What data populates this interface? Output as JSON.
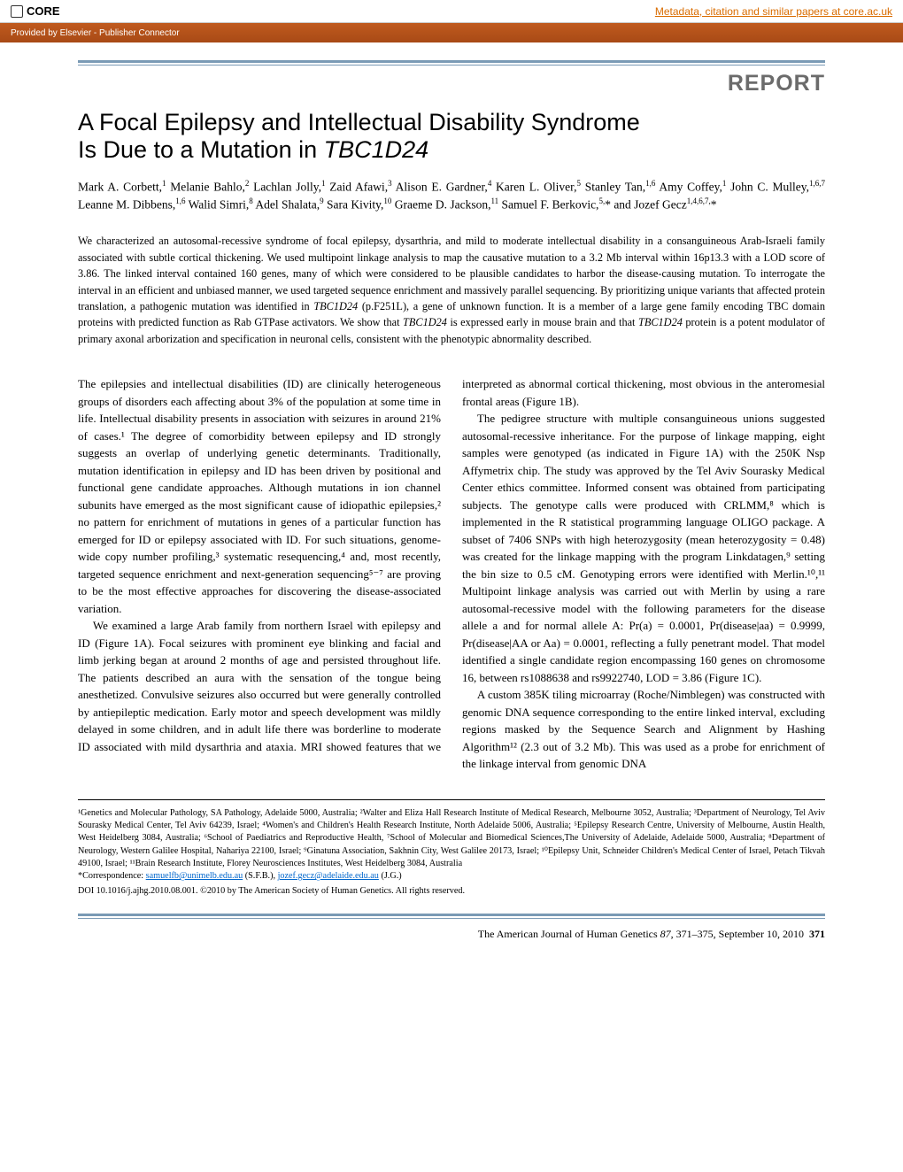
{
  "banner": {
    "core_label": "CORE",
    "core_link": "Metadata, citation and similar papers at core.ac.uk",
    "provider": "Provided by Elsevier - Publisher Connector"
  },
  "report_label": "REPORT",
  "title_line1": "A Focal Epilepsy and Intellectual Disability Syndrome",
  "title_line2_prefix": "Is Due to a Mutation in ",
  "title_gene": "TBC1D24",
  "authors_html": "Mark A. Corbett,<sup>1</sup> Melanie Bahlo,<sup>2</sup> Lachlan Jolly,<sup>1</sup> Zaid Afawi,<sup>3</sup> Alison E. Gardner,<sup>4</sup> Karen L. Oliver,<sup>5</sup> Stanley Tan,<sup>1,6</sup> Amy Coffey,<sup>1</sup> John C. Mulley,<sup>1,6,7</sup> Leanne M. Dibbens,<sup>1,6</sup> Walid Simri,<sup>8</sup> Adel Shalata,<sup>9</sup> Sara Kivity,<sup>10</sup> Graeme D. Jackson,<sup>11</sup> Samuel F. Berkovic,<sup>5,</sup>* and Jozef Gecz<sup>1,4,6,7,</sup>*",
  "abstract": "We characterized an autosomal-recessive syndrome of focal epilepsy, dysarthria, and mild to moderate intellectual disability in a consanguineous Arab-Israeli family associated with subtle cortical thickening. We used multipoint linkage analysis to map the causative mutation to a 3.2 Mb interval within 16p13.3 with a LOD score of 3.86. The linked interval contained 160 genes, many of which were considered to be plausible candidates to harbor the disease-causing mutation. To interrogate the interval in an efficient and unbiased manner, we used targeted sequence enrichment and massively parallel sequencing. By prioritizing unique variants that affected protein translation, a pathogenic mutation was identified in TBC1D24 (p.F251L), a gene of unknown function. It is a member of a large gene family encoding TBC domain proteins with predicted function as Rab GTPase activators. We show that TBC1D24 is expressed early in mouse brain and that TBC1D24 protein is a potent modulator of primary axonal arborization and specification in neuronal cells, consistent with the phenotypic abnormality described.",
  "body": {
    "p1": "The epilepsies and intellectual disabilities (ID) are clinically heterogeneous groups of disorders each affecting about 3% of the population at some time in life. Intellectual disability presents in association with seizures in around 21% of cases.¹ The degree of comorbidity between epilepsy and ID strongly suggests an overlap of underlying genetic determinants. Traditionally, mutation identification in epilepsy and ID has been driven by positional and functional gene candidate approaches. Although mutations in ion channel subunits have emerged as the most significant cause of idiopathic epilepsies,² no pattern for enrichment of mutations in genes of a particular function has emerged for ID or epilepsy associated with ID. For such situations, genome-wide copy number profiling,³ systematic resequencing,⁴ and, most recently, targeted sequence enrichment and next-generation sequencing⁵⁻⁷ are proving to be the most effective approaches for discovering the disease-associated variation.",
    "p2": "We examined a large Arab family from northern Israel with epilepsy and ID (Figure 1A). Focal seizures with prominent eye blinking and facial and limb jerking began at around 2 months of age and persisted throughout life. The patients described an aura with the sensation of the tongue being anesthetized. Convulsive seizures also occurred but were generally controlled by antiepileptic medication. Early motor and speech development was mildly delayed in some children, and in adult life there was borderline to moderate ID associated with mild dysarthria and ataxia. MRI showed features that we interpreted as abnormal cortical thickening, most obvious in the anteromesial frontal areas (Figure 1B).",
    "p3": "The pedigree structure with multiple consanguineous unions suggested autosomal-recessive inheritance. For the purpose of linkage mapping, eight samples were genotyped (as indicated in Figure 1A) with the 250K Nsp Affymetrix chip. The study was approved by the Tel Aviv Sourasky Medical Center ethics committee. Informed consent was obtained from participating subjects. The genotype calls were produced with CRLMM,⁸ which is implemented in the R statistical programming language OLIGO package. A subset of 7406 SNPs with high heterozygosity (mean heterozygosity = 0.48) was created for the linkage mapping with the program Linkdatagen,⁹ setting the bin size to 0.5 cM. Genotyping errors were identified with Merlin.¹⁰,¹¹ Multipoint linkage analysis was carried out with Merlin by using a rare autosomal-recessive model with the following parameters for the disease allele a and for normal allele A: Pr(a) = 0.0001, Pr(disease|aa) = 0.9999, Pr(disease|AA or Aa) = 0.0001, reflecting a fully penetrant model. That model identified a single candidate region encompassing 160 genes on chromosome 16, between rs1088638 and rs9922740, LOD = 3.86 (Figure 1C).",
    "p4": "A custom 385K tiling microarray (Roche/Nimblegen) was constructed with genomic DNA sequence corresponding to the entire linked interval, excluding regions masked by the Sequence Search and Alignment by Hashing Algorithm¹² (2.3 out of 3.2 Mb). This was used as a probe for enrichment of the linkage interval from genomic DNA"
  },
  "affiliations": "¹Genetics and Molecular Pathology, SA Pathology, Adelaide 5000, Australia; ²Walter and Eliza Hall Research Institute of Medical Research, Melbourne 3052, Australia; ³Department of Neurology, Tel Aviv Sourasky Medical Center, Tel Aviv 64239, Israel; ⁴Women's and Children's Health Research Institute, North Adelaide 5006, Australia; ⁵Epilepsy Research Centre, University of Melbourne, Austin Health, West Heidelberg 3084, Australia; ⁶School of Paediatrics and Reproductive Health, ⁷School of Molecular and Biomedical Sciences,The University of Adelaide, Adelaide 5000, Australia; ⁸Department of Neurology, Western Galilee Hospital, Nahariya 22100, Israel; ⁹Ginatuna Association, Sakhnin City, West Galilee 20173, Israel; ¹⁰Epilepsy Unit, Schneider Children's Medical Center of Israel, Petach Tikvah 49100, Israel; ¹¹Brain Research Institute, Florey Neurosciences Institutes, West Heidelberg 3084, Australia",
  "correspondence_label": "*Correspondence: ",
  "email1": "samuelfb@unimelb.edu.au",
  "email1_suffix": " (S.F.B.), ",
  "email2": "jozef.gecz@adelaide.edu.au",
  "email2_suffix": " (J.G.)",
  "doi": "DOI 10.1016/j.ajhg.2010.08.001. ©2010 by The American Society of Human Genetics. All rights reserved.",
  "footer": {
    "journal": "The American Journal of Human Genetics ",
    "volume_issue": "87",
    "pages_date": ", 371–375, September 10, 2010",
    "page_num": "371"
  },
  "colors": {
    "rule": "#7a9ab5",
    "report_gray": "#6b6b6b",
    "link": "#0066cc",
    "banner_orange": "#d96c00",
    "provider_bg": "#b8541a"
  }
}
